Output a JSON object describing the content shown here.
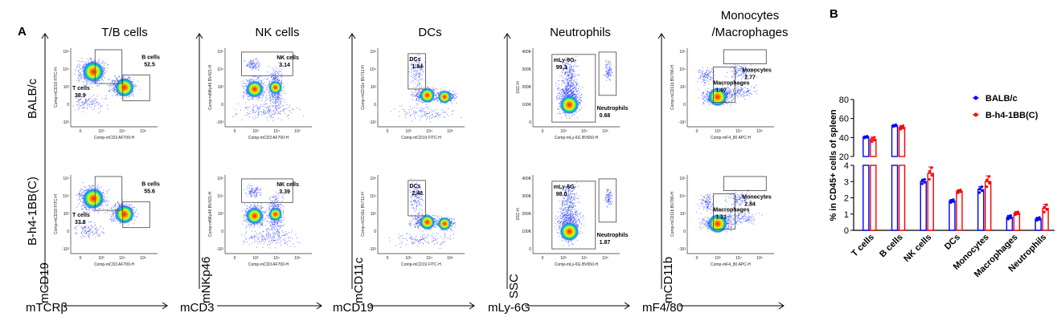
{
  "panel_a_label": "A",
  "panel_b_label": "B",
  "rows": [
    "BALB/c",
    "B-h4-1BB(C)"
  ],
  "y_marker": "mCD19",
  "columns": [
    {
      "title": "T/B cells",
      "title2": "",
      "x_marker": "mTCRβ",
      "y_marker": "",
      "mini_x": "Comp-mCD3 AF700-H",
      "mini_y": "Comp-mCD19 FITC-H",
      "x_ticks": [
        "0",
        "10³",
        "10⁴",
        "10⁵"
      ],
      "y_ticks": [
        "10⁵",
        "10⁴",
        "10³",
        "0",
        "-10³"
      ],
      "gates": [
        [
          {
            "name": "T cells",
            "value": "38.9"
          },
          {
            "name": "B cells",
            "value": "52.5"
          }
        ],
        [
          {
            "name": "T cells",
            "value": "33.8"
          },
          {
            "name": "B cells",
            "value": "55.6"
          }
        ]
      ]
    },
    {
      "title": "NK cells",
      "title2": "",
      "x_marker": "mCD3",
      "y_marker": "mNKp46",
      "mini_x": "Comp-mCD3 AF700-H",
      "mini_y": "Comp-mNKp46 BV421-H",
      "x_ticks": [
        "0",
        "10³",
        "10⁴",
        "10⁵"
      ],
      "y_ticks": [
        "10⁵",
        "10⁴",
        "10³",
        "0",
        "-10³"
      ],
      "gates": [
        [
          {
            "name": "NK cells",
            "value": "3.14"
          }
        ],
        [
          {
            "name": "NK cells",
            "value": "3.39"
          }
        ]
      ]
    },
    {
      "title": "DCs",
      "title2": "",
      "x_marker": "mCD19",
      "y_marker": "mCD11c",
      "mini_x": "Comp-mCD19 FITC-H",
      "mini_y": "Comp-mCD11c BV711-H",
      "x_ticks": [
        "0",
        "10³",
        "10⁴",
        "10⁵"
      ],
      "y_ticks": [
        "10⁵",
        "10⁴",
        "10³",
        "0",
        "-10³"
      ],
      "gates": [
        [
          {
            "name": "DCs",
            "value": "1.84"
          }
        ],
        [
          {
            "name": "DCs",
            "value": "2.48"
          }
        ]
      ]
    },
    {
      "title": "Neutrophils",
      "title2": "",
      "x_marker": "mLy-6G",
      "y_marker": "SSC",
      "mini_x": "Comp-mLy-6G BV650-H",
      "mini_y": "SSC-H",
      "x_ticks": [
        "0",
        "10³",
        "10⁴",
        "10⁵"
      ],
      "y_ticks": [
        "400K",
        "300K",
        "200K",
        "100K",
        "0"
      ],
      "gates": [
        [
          {
            "name": "mLy-6G-",
            "value": "99.3"
          },
          {
            "name": "Neutrophils",
            "value": "0.68"
          }
        ],
        [
          {
            "name": "mLy-6G-",
            "value": "98.0"
          },
          {
            "name": "Neutrophils",
            "value": "1.87"
          }
        ]
      ]
    },
    {
      "title": "Monocytes",
      "title2": "/Macrophages",
      "x_marker": "mF4/80",
      "y_marker": "mCD11b",
      "mini_x": "Comp-mF4_80 APC-H",
      "mini_y": "Comp-mCD11b BV786-H",
      "x_ticks": [
        "0",
        "10³",
        "10⁴",
        "10⁵"
      ],
      "y_ticks": [
        "10⁵",
        "10⁴",
        "10³",
        "0",
        "-10³"
      ],
      "gates": [
        [
          {
            "name": "Monocytes",
            "value": "2.77"
          },
          {
            "name": "Macrophages",
            "value": "1.07"
          }
        ],
        [
          {
            "name": "Monocytes",
            "value": "2.84"
          },
          {
            "name": "Macrophages",
            "value": "1.21"
          }
        ]
      ]
    }
  ],
  "chart_data": {
    "type": "bar",
    "categories": [
      "T cells",
      "B cells",
      "NK cells",
      "DCs",
      "Monocytes",
      "Macrophages",
      "Neutrophils"
    ],
    "series": [
      {
        "name": "BALB/c",
        "color": "#0000ff",
        "values": [
          40.5,
          52.5,
          3.0,
          1.8,
          2.5,
          0.8,
          0.7
        ],
        "errors": [
          1.0,
          1.0,
          0.15,
          0.1,
          0.2,
          0.12,
          0.1
        ]
      },
      {
        "name": "B-h4-1BB(C)",
        "color": "#ff0000",
        "values": [
          38.0,
          50.5,
          3.5,
          2.4,
          3.0,
          1.05,
          1.35
        ],
        "errors": [
          2.5,
          2.0,
          0.4,
          0.1,
          0.35,
          0.1,
          0.25
        ]
      }
    ],
    "ylabel": "% in CD45+ cells of spleen",
    "y_upper_ticks": [
      "80",
      "60",
      "40",
      "20"
    ],
    "y_lower_ticks": [
      "4",
      "3",
      "2",
      "1",
      "0"
    ],
    "y_break": [
      4,
      20
    ],
    "ylim": [
      0,
      80
    ],
    "legend_position": "top-right"
  }
}
